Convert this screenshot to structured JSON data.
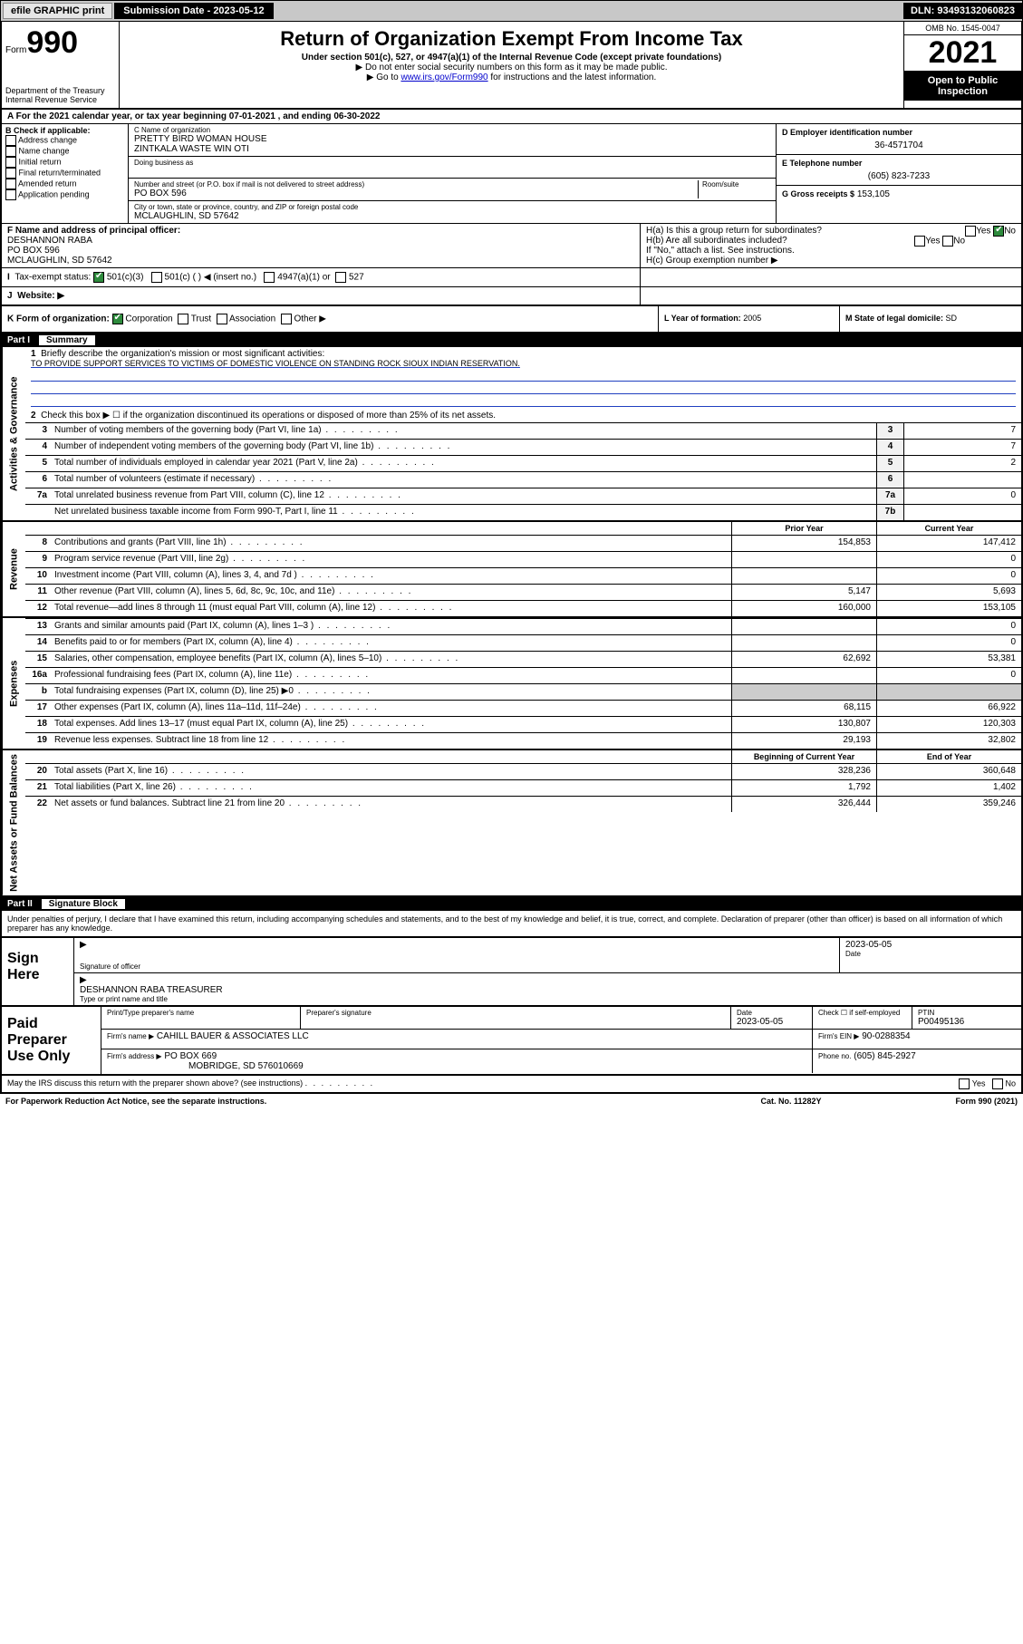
{
  "topbar": {
    "efile": "efile GRAPHIC print",
    "submission_label": "Submission Date - 2023-05-12",
    "dln": "DLN: 93493132060823"
  },
  "header": {
    "form_label": "Form",
    "form_num": "990",
    "dept": "Department of the Treasury Internal Revenue Service",
    "title": "Return of Organization Exempt From Income Tax",
    "sub1": "Under section 501(c), 527, or 4947(a)(1) of the Internal Revenue Code (except private foundations)",
    "sub2": "▶ Do not enter social security numbers on this form as it may be made public.",
    "sub3_pre": "▶ Go to ",
    "sub3_link": "www.irs.gov/Form990",
    "sub3_post": " for instructions and the latest information.",
    "omb": "OMB No. 1545-0047",
    "year": "2021",
    "inspect": "Open to Public Inspection"
  },
  "row_a": "A For the 2021 calendar year, or tax year beginning 07-01-2021   , and ending 06-30-2022",
  "col_b": {
    "label": "B Check if applicable:",
    "opts": [
      "Address change",
      "Name change",
      "Initial return",
      "Final return/terminated",
      "Amended return",
      "Application pending"
    ]
  },
  "col_c": {
    "name_lab": "C Name of organization",
    "name1": "PRETTY BIRD WOMAN HOUSE",
    "name2": "ZINTKALA WASTE WIN OTI",
    "dba_lab": "Doing business as",
    "addr_lab": "Number and street (or P.O. box if mail is not delivered to street address)",
    "room_lab": "Room/suite",
    "addr": "PO BOX 596",
    "city_lab": "City or town, state or province, country, and ZIP or foreign postal code",
    "city": "MCLAUGHLIN, SD  57642"
  },
  "col_def": {
    "d_lab": "D Employer identification number",
    "d_val": "36-4571704",
    "e_lab": "E Telephone number",
    "e_val": "(605) 823-7233",
    "g_lab": "G Gross receipts $",
    "g_val": "153,105"
  },
  "row_f": {
    "f_lab": "F Name and address of principal officer:",
    "f_name": "DESHANNON RABA",
    "f_addr1": "PO BOX 596",
    "f_addr2": "MCLAUGHLIN, SD  57642",
    "ha_lab": "H(a)  Is this a group return for subordinates?",
    "ha_yes": "Yes",
    "ha_no": "No",
    "hb_lab": "H(b)  Are all subordinates included?",
    "hb_note": "If \"No,\" attach a list. See instructions.",
    "hc_lab": "H(c)  Group exemption number ▶"
  },
  "row_i": {
    "lab": "Tax-exempt status:",
    "o1": "501(c)(3)",
    "o2": "501(c) (  ) ◀ (insert no.)",
    "o3": "4947(a)(1) or",
    "o4": "527"
  },
  "row_j": {
    "lab": "Website: ▶"
  },
  "row_k": {
    "lab": "K Form of organization:",
    "o1": "Corporation",
    "o2": "Trust",
    "o3": "Association",
    "o4": "Other ▶",
    "l_lab": "L Year of formation:",
    "l_val": "2005",
    "m_lab": "M State of legal domicile:",
    "m_val": "SD"
  },
  "part1": {
    "num": "Part I",
    "title": "Summary",
    "sections": {
      "gov": "Activities & Governance",
      "rev": "Revenue",
      "exp": "Expenses",
      "net": "Net Assets or Fund Balances"
    },
    "l1_lab": "Briefly describe the organization's mission or most significant activities:",
    "l1_txt": "TO PROVIDE SUPPORT SERVICES TO VICTIMS OF DOMESTIC VIOLENCE ON STANDING ROCK SIOUX INDIAN RESERVATION.",
    "l2": "Check this box ▶ ☐  if the organization discontinued its operations or disposed of more than 25% of its net assets.",
    "lines_gov": [
      {
        "n": "3",
        "t": "Number of voting members of the governing body (Part VI, line 1a)",
        "box": "3",
        "v": "7"
      },
      {
        "n": "4",
        "t": "Number of independent voting members of the governing body (Part VI, line 1b)",
        "box": "4",
        "v": "7"
      },
      {
        "n": "5",
        "t": "Total number of individuals employed in calendar year 2021 (Part V, line 2a)",
        "box": "5",
        "v": "2"
      },
      {
        "n": "6",
        "t": "Total number of volunteers (estimate if necessary)",
        "box": "6",
        "v": ""
      },
      {
        "n": "7a",
        "t": "Total unrelated business revenue from Part VIII, column (C), line 12",
        "box": "7a",
        "v": "0"
      },
      {
        "n": "",
        "t": "Net unrelated business taxable income from Form 990-T, Part I, line 11",
        "box": "7b",
        "v": ""
      }
    ],
    "hdr_prior": "Prior Year",
    "hdr_curr": "Current Year",
    "lines_rev": [
      {
        "n": "8",
        "t": "Contributions and grants (Part VIII, line 1h)",
        "p": "154,853",
        "c": "147,412"
      },
      {
        "n": "9",
        "t": "Program service revenue (Part VIII, line 2g)",
        "p": "",
        "c": "0"
      },
      {
        "n": "10",
        "t": "Investment income (Part VIII, column (A), lines 3, 4, and 7d )",
        "p": "",
        "c": "0"
      },
      {
        "n": "11",
        "t": "Other revenue (Part VIII, column (A), lines 5, 6d, 8c, 9c, 10c, and 11e)",
        "p": "5,147",
        "c": "5,693"
      },
      {
        "n": "12",
        "t": "Total revenue—add lines 8 through 11 (must equal Part VIII, column (A), line 12)",
        "p": "160,000",
        "c": "153,105"
      }
    ],
    "lines_exp": [
      {
        "n": "13",
        "t": "Grants and similar amounts paid (Part IX, column (A), lines 1–3 )",
        "p": "",
        "c": "0"
      },
      {
        "n": "14",
        "t": "Benefits paid to or for members (Part IX, column (A), line 4)",
        "p": "",
        "c": "0"
      },
      {
        "n": "15",
        "t": "Salaries, other compensation, employee benefits (Part IX, column (A), lines 5–10)",
        "p": "62,692",
        "c": "53,381"
      },
      {
        "n": "16a",
        "t": "Professional fundraising fees (Part IX, column (A), line 11e)",
        "p": "",
        "c": "0"
      },
      {
        "n": "b",
        "t": "Total fundraising expenses (Part IX, column (D), line 25) ▶0",
        "p": "GRAY",
        "c": "GRAY"
      },
      {
        "n": "17",
        "t": "Other expenses (Part IX, column (A), lines 11a–11d, 11f–24e)",
        "p": "68,115",
        "c": "66,922"
      },
      {
        "n": "18",
        "t": "Total expenses. Add lines 13–17 (must equal Part IX, column (A), line 25)",
        "p": "130,807",
        "c": "120,303"
      },
      {
        "n": "19",
        "t": "Revenue less expenses. Subtract line 18 from line 12",
        "p": "29,193",
        "c": "32,802"
      }
    ],
    "hdr_beg": "Beginning of Current Year",
    "hdr_end": "End of Year",
    "lines_net": [
      {
        "n": "20",
        "t": "Total assets (Part X, line 16)",
        "p": "328,236",
        "c": "360,648"
      },
      {
        "n": "21",
        "t": "Total liabilities (Part X, line 26)",
        "p": "1,792",
        "c": "1,402"
      },
      {
        "n": "22",
        "t": "Net assets or fund balances. Subtract line 21 from line 20",
        "p": "326,444",
        "c": "359,246"
      }
    ]
  },
  "part2": {
    "num": "Part II",
    "title": "Signature Block",
    "intro": "Under penalties of perjury, I declare that I have examined this return, including accompanying schedules and statements, and to the best of my knowledge and belief, it is true, correct, and complete. Declaration of preparer (other than officer) is based on all information of which preparer has any knowledge.",
    "sign_here": "Sign Here",
    "sig_of_officer": "Signature of officer",
    "sig_date": "2023-05-05",
    "date_lab": "Date",
    "officer_name": "DESHANNON RABA  TREASURER",
    "officer_lab": "Type or print name and title",
    "paid": "Paid Preparer Use Only",
    "prep_name_lab": "Print/Type preparer's name",
    "prep_sig_lab": "Preparer's signature",
    "prep_date_lab": "Date",
    "prep_date": "2023-05-05",
    "prep_check_lab": "Check ☐ if self-employed",
    "ptin_lab": "PTIN",
    "ptin": "P00495136",
    "firm_name_lab": "Firm's name   ▶",
    "firm_name": "CAHILL BAUER & ASSOCIATES LLC",
    "firm_ein_lab": "Firm's EIN ▶",
    "firm_ein": "90-0288354",
    "firm_addr_lab": "Firm's address ▶",
    "firm_addr1": "PO BOX 669",
    "firm_addr2": "MOBRIDGE, SD  576010669",
    "phone_lab": "Phone no.",
    "phone": "(605) 845-2927",
    "discuss": "May the IRS discuss this return with the preparer shown above? (see instructions)",
    "yes": "Yes",
    "no": "No"
  },
  "footer": {
    "pra": "For Paperwork Reduction Act Notice, see the separate instructions.",
    "cat": "Cat. No. 11282Y",
    "form": "Form 990 (2021)"
  },
  "colors": {
    "link": "#0000cc",
    "accent_green": "#2e8b3d",
    "gray_bg": "#c8c8c8",
    "cell_gray": "#cccccc",
    "underline_blue": "#2040c0"
  }
}
